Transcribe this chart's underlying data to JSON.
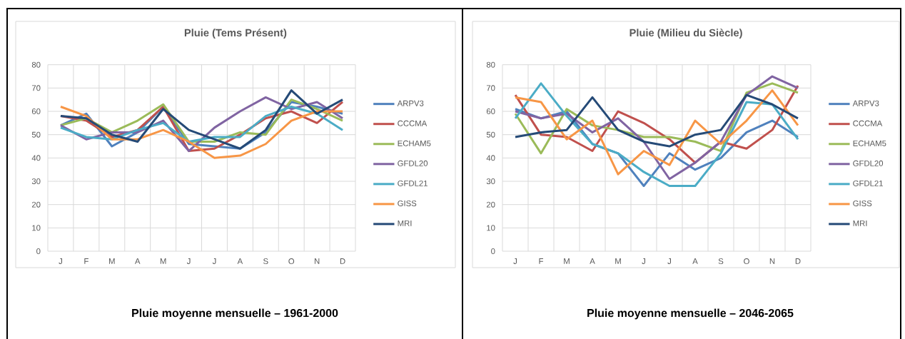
{
  "chart_data": [
    {
      "type": "line",
      "title": "Pluie (Tems Présent)",
      "categories": [
        "J",
        "F",
        "M",
        "A",
        "M",
        "J",
        "J",
        "A",
        "S",
        "O",
        "N",
        "D"
      ],
      "ylim": [
        0,
        80
      ],
      "yticks": [
        0,
        10,
        20,
        30,
        40,
        50,
        60,
        70,
        80
      ],
      "grid": true,
      "legend": "right",
      "annotations": [
        "Pluie moyenne mensuelle – 1961-2000"
      ],
      "series": [
        {
          "name": "ARPV3",
          "color": "#4f81bd",
          "values": [
            54,
            59,
            45,
            51,
            62,
            46,
            45,
            44,
            51,
            64,
            62,
            59
          ]
        },
        {
          "name": "CCCMA",
          "color": "#c0504d",
          "values": [
            58,
            56,
            49,
            52,
            62,
            43,
            44,
            50,
            57,
            60,
            55,
            64
          ]
        },
        {
          "name": "ECHAM5",
          "color": "#9bbb59",
          "values": [
            54,
            57,
            51,
            56,
            63,
            47,
            47,
            51,
            50,
            65,
            61,
            56
          ]
        },
        {
          "name": "GFDL20",
          "color": "#8064a2",
          "values": [
            54,
            48,
            51,
            51,
            56,
            43,
            53,
            60,
            66,
            61,
            64,
            57
          ]
        },
        {
          "name": "GFDL21",
          "color": "#4bacc6",
          "values": [
            53,
            49,
            48,
            52,
            55,
            47,
            49,
            49,
            58,
            62,
            59,
            52
          ]
        },
        {
          "name": "GISS",
          "color": "#f79646",
          "values": [
            62,
            58,
            48,
            48,
            52,
            47,
            40,
            41,
            46,
            56,
            60,
            60
          ]
        },
        {
          "name": "MRI",
          "color": "#254a77",
          "values": [
            58,
            57,
            50,
            47,
            61,
            52,
            48,
            44,
            52,
            69,
            59,
            65
          ]
        }
      ]
    },
    {
      "type": "line",
      "title": "Pluie (Milieu du Siècle)",
      "categories": [
        "J",
        "F",
        "M",
        "A",
        "M",
        "J",
        "J",
        "A",
        "S",
        "O",
        "N",
        "D"
      ],
      "ylim": [
        0,
        80
      ],
      "yticks": [
        0,
        10,
        20,
        30,
        40,
        50,
        60,
        70,
        80
      ],
      "grid": true,
      "legend": "right",
      "annotations": [
        "Pluie moyenne mensuelle – 2046-2065"
      ],
      "series": [
        {
          "name": "ARPV3",
          "color": "#4f81bd",
          "values": [
            61,
            57,
            60,
            46,
            42,
            28,
            42,
            35,
            40,
            51,
            56,
            49
          ]
        },
        {
          "name": "CCCMA",
          "color": "#c0504d",
          "values": [
            67,
            50,
            49,
            43,
            60,
            55,
            48,
            38,
            47,
            44,
            52,
            71
          ]
        },
        {
          "name": "ECHAM5",
          "color": "#9bbb59",
          "values": [
            59,
            42,
            61,
            54,
            52,
            49,
            49,
            47,
            43,
            68,
            72,
            68
          ]
        },
        {
          "name": "GFDL20",
          "color": "#8064a2",
          "values": [
            60,
            57,
            59,
            51,
            57,
            47,
            31,
            38,
            47,
            67,
            75,
            70
          ]
        },
        {
          "name": "GFDL21",
          "color": "#4bacc6",
          "values": [
            57,
            72,
            58,
            46,
            42,
            34,
            28,
            28,
            42,
            64,
            63,
            48
          ]
        },
        {
          "name": "GISS",
          "color": "#f79646",
          "values": [
            66,
            64,
            48,
            56,
            33,
            43,
            37,
            56,
            46,
            56,
            69,
            54
          ]
        },
        {
          "name": "MRI",
          "color": "#254a77",
          "values": [
            49,
            51,
            52,
            66,
            52,
            47,
            45,
            50,
            52,
            67,
            63,
            57
          ]
        }
      ]
    }
  ]
}
